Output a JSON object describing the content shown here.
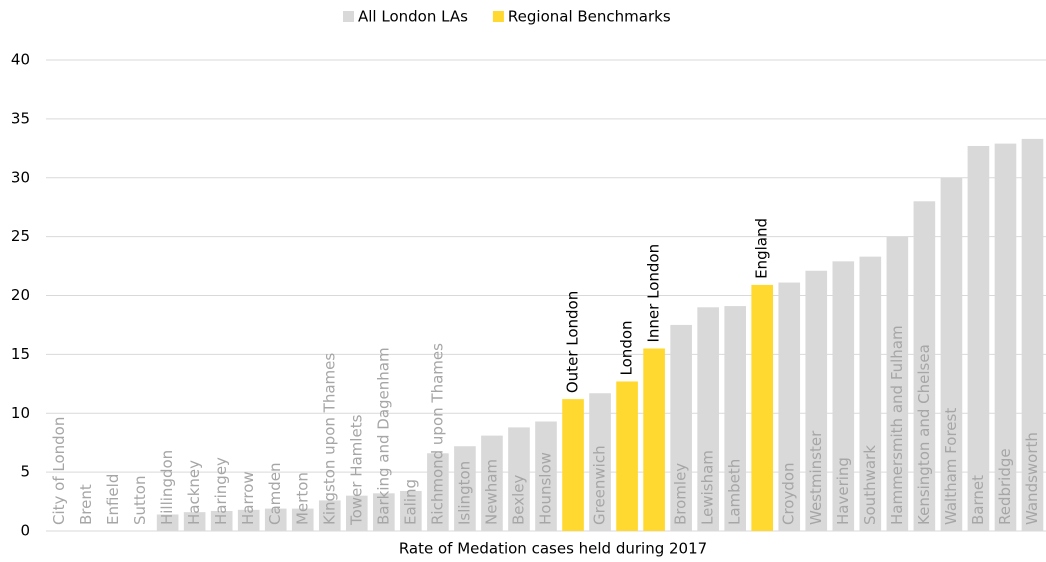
{
  "chart_data": {
    "type": "bar",
    "xlabel": "Rate of Medation cases held during 2017",
    "categories": [
      "City of London",
      "Brent",
      "Enfield",
      "Sutton",
      "Hillingdon",
      "Hackney",
      "Haringey",
      "Harrow",
      "Camden",
      "Merton",
      "Kingston upon Thames",
      "Tower Hamlets",
      "Barking and Dagenham",
      "Ealing",
      "Richmond upon Thames",
      "Islington",
      "Newham",
      "Bexley",
      "Hounslow",
      "Outer London",
      "Greenwich",
      "London",
      "Inner London",
      "Bromley",
      "Lewisham",
      "Lambeth",
      "England",
      "Croydon",
      "Westminster",
      "Havering",
      "Southwark",
      "Hammersmith and Fulham",
      "Kensington and Chelsea",
      "Waltham Forest",
      "Barnet",
      "Redbridge",
      "Wandsworth"
    ],
    "series": [
      {
        "name": "All London LAs",
        "color": "#d9d9d9",
        "values": [
          0,
          0,
          0,
          0,
          1.4,
          1.6,
          1.7,
          1.8,
          1.9,
          1.9,
          2.6,
          3.0,
          3.2,
          3.4,
          6.6,
          7.2,
          8.1,
          8.8,
          9.3,
          null,
          11.7,
          null,
          null,
          17.5,
          19.0,
          19.1,
          null,
          21.1,
          22.1,
          22.9,
          23.3,
          25.0,
          28.0,
          30.0,
          32.7,
          32.9,
          33.3
        ]
      },
      {
        "name": "Regional Benchmarks",
        "color": "#ffd92f",
        "values": [
          null,
          null,
          null,
          null,
          null,
          null,
          null,
          null,
          null,
          null,
          null,
          null,
          null,
          null,
          null,
          null,
          null,
          null,
          null,
          11.2,
          null,
          12.7,
          15.5,
          null,
          null,
          null,
          20.9,
          null,
          null,
          null,
          null,
          null,
          null,
          null,
          null,
          null,
          null
        ]
      }
    ],
    "ylim": [
      0,
      40
    ],
    "yticks": [
      0,
      5,
      10,
      15,
      20,
      25,
      30,
      35,
      40
    ],
    "grid": true,
    "legend": "top"
  }
}
